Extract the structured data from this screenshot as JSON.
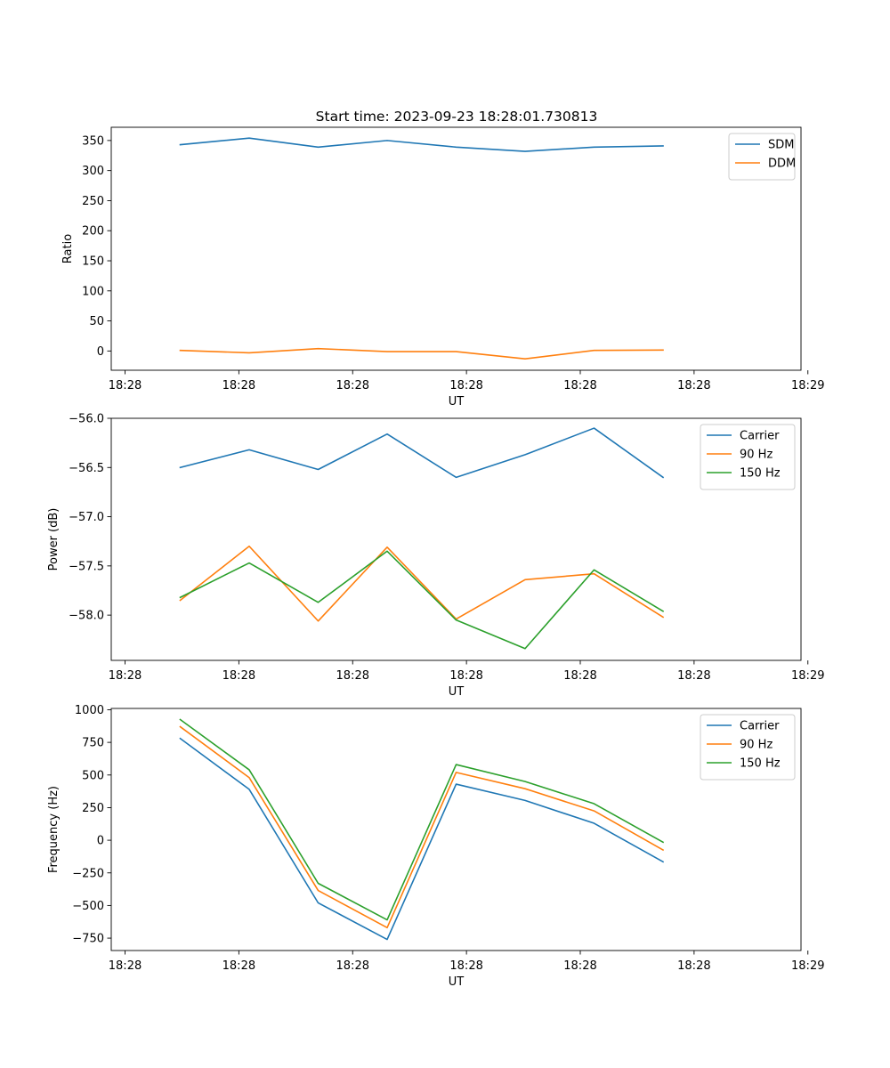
{
  "title": "Start time: 2023-09-23 18:28:01.730813",
  "chart_data": [
    {
      "type": "line",
      "title": "Start time: 2023-09-23 18:28:01.730813",
      "xlabel": "UT",
      "ylabel": "Ratio",
      "x": [
        1,
        2,
        3,
        4,
        5,
        6,
        7,
        8
      ],
      "xlim": [
        0,
        10
      ],
      "xticks": [
        0.2,
        1.85,
        3.5,
        5.15,
        6.8,
        8.45,
        10.1
      ],
      "xtick_labels": [
        "18:28",
        "18:28",
        "18:28",
        "18:28",
        "18:28",
        "18:28",
        "18:29"
      ],
      "ylim": [
        -32,
        372
      ],
      "yticks": [
        0,
        50,
        100,
        150,
        200,
        250,
        300,
        350
      ],
      "ytick_labels": [
        "0",
        "50",
        "100",
        "150",
        "200",
        "250",
        "300",
        "350"
      ],
      "legend_position": "top-right",
      "series": [
        {
          "name": "SDM",
          "color": "#1f77b4",
          "values": [
            343,
            354,
            339,
            350,
            339,
            332,
            339,
            341
          ]
        },
        {
          "name": "DDM",
          "color": "#ff7f0e",
          "values": [
            1,
            -3,
            4,
            -1,
            -1,
            -13,
            1,
            1.5
          ]
        }
      ]
    },
    {
      "type": "line",
      "title": "",
      "xlabel": "UT",
      "ylabel": "Power (dB)",
      "x": [
        1,
        2,
        3,
        4,
        5,
        6,
        7,
        8
      ],
      "xlim": [
        0,
        10
      ],
      "xticks": [
        0.2,
        1.85,
        3.5,
        5.15,
        6.8,
        8.45,
        10.1
      ],
      "xtick_labels": [
        "18:28",
        "18:28",
        "18:28",
        "18:28",
        "18:28",
        "18:28",
        "18:29"
      ],
      "ylim": [
        -58.46,
        -56.0
      ],
      "yticks": [
        -56.0,
        -56.5,
        -57.0,
        -57.5,
        -58.0
      ],
      "ytick_labels": [
        "−56.0",
        "−56.5",
        "−57.0",
        "−57.5",
        "−58.0"
      ],
      "legend_position": "top-right",
      "series": [
        {
          "name": "Carrier",
          "color": "#1f77b4",
          "values": [
            -56.5,
            -56.32,
            -56.52,
            -56.16,
            -56.6,
            -56.37,
            -56.1,
            -56.6
          ]
        },
        {
          "name": "90 Hz",
          "color": "#ff7f0e",
          "values": [
            -57.85,
            -57.3,
            -58.06,
            -57.31,
            -58.04,
            -57.64,
            -57.58,
            -58.02
          ]
        },
        {
          "name": "150 Hz",
          "color": "#2ca02c",
          "values": [
            -57.82,
            -57.47,
            -57.87,
            -57.35,
            -58.05,
            -58.34,
            -57.54,
            -57.96
          ]
        }
      ]
    },
    {
      "type": "line",
      "title": "",
      "xlabel": "UT",
      "ylabel": "Frequency (Hz)",
      "x": [
        1,
        2,
        3,
        4,
        5,
        6,
        7,
        8
      ],
      "xlim": [
        0,
        10
      ],
      "xticks": [
        0.2,
        1.85,
        3.5,
        5.15,
        6.8,
        8.45,
        10.1
      ],
      "xtick_labels": [
        "18:28",
        "18:28",
        "18:28",
        "18:28",
        "18:28",
        "18:28",
        "18:29"
      ],
      "ylim": [
        -845,
        1010
      ],
      "yticks": [
        1000,
        750,
        500,
        250,
        0,
        -250,
        -500,
        -750
      ],
      "ytick_labels": [
        "1000",
        "750",
        "500",
        "250",
        "0",
        "−250",
        "−500",
        "−750"
      ],
      "legend_position": "top-right",
      "series": [
        {
          "name": "Carrier",
          "color": "#1f77b4",
          "values": [
            780,
            390,
            -480,
            -760,
            430,
            305,
            130,
            -165
          ]
        },
        {
          "name": "90 Hz",
          "color": "#ff7f0e",
          "values": [
            870,
            480,
            -385,
            -670,
            520,
            395,
            225,
            -75
          ]
        },
        {
          "name": "150 Hz",
          "color": "#2ca02c",
          "values": [
            925,
            540,
            -330,
            -610,
            580,
            450,
            280,
            -15
          ]
        }
      ]
    }
  ]
}
